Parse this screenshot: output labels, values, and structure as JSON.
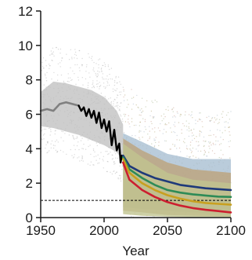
{
  "chart_data": {
    "type": "line",
    "title": "",
    "xlabel": "Year",
    "ylabel": "",
    "xlim": [
      1950,
      2100
    ],
    "ylim": [
      0,
      12
    ],
    "x_ticks": [
      1950,
      2000,
      2050,
      2100
    ],
    "y_ticks": [
      0,
      2,
      4,
      6,
      8,
      10,
      12
    ],
    "grid": false,
    "legend": "none",
    "reference_line": {
      "y": 1,
      "style": "dashed",
      "color": "#000000"
    },
    "historical_band": {
      "color": "#bdbdbd",
      "x": [
        1950,
        1960,
        1970,
        1980,
        1990,
        2000,
        2010,
        2015
      ],
      "lower": [
        5.3,
        5.2,
        5.0,
        4.8,
        4.5,
        4.2,
        3.8,
        3.3
      ],
      "upper": [
        7.3,
        7.9,
        7.8,
        7.6,
        7.4,
        7.0,
        6.2,
        5.4
      ]
    },
    "series": [
      {
        "color": "#808080",
        "x": [
          1950,
          1955,
          1960,
          1965,
          1970,
          1975,
          1980
        ],
        "values": [
          6.2,
          6.3,
          6.2,
          6.6,
          6.7,
          6.6,
          6.5
        ]
      },
      {
        "color": "#000000",
        "x": [
          1980,
          1982,
          1984,
          1986,
          1988,
          1990,
          1992,
          1994,
          1996,
          1998,
          2000,
          2002,
          2004,
          2006,
          2008,
          2010,
          2012,
          2013,
          2014
        ],
        "values": [
          6.5,
          6.2,
          6.4,
          5.9,
          6.3,
          5.8,
          6.2,
          5.5,
          6.1,
          5.2,
          5.7,
          5.0,
          5.6,
          4.2,
          5.1,
          3.9,
          4.3,
          3.2,
          3.6
        ]
      },
      {
        "color": "#1f3a7a",
        "x": [
          2015,
          2020,
          2030,
          2040,
          2050,
          2060,
          2070,
          2080,
          2090,
          2100
        ],
        "values": [
          3.6,
          3.0,
          2.6,
          2.3,
          2.1,
          1.9,
          1.8,
          1.7,
          1.65,
          1.6
        ]
      },
      {
        "color": "#2e8b57",
        "x": [
          2015,
          2020,
          2030,
          2040,
          2050,
          2060,
          2070,
          2080,
          2090,
          2100
        ],
        "values": [
          3.5,
          2.8,
          2.3,
          1.9,
          1.6,
          1.45,
          1.35,
          1.28,
          1.22,
          1.2
        ]
      },
      {
        "color": "#c8a020",
        "x": [
          2015,
          2020,
          2030,
          2040,
          2050,
          2060,
          2070,
          2080,
          2090,
          2100
        ],
        "values": [
          3.4,
          2.6,
          2.0,
          1.6,
          1.3,
          1.1,
          0.95,
          0.85,
          0.8,
          0.75
        ]
      },
      {
        "color": "#cc1f2f",
        "x": [
          2015,
          2020,
          2030,
          2040,
          2050,
          2060,
          2070,
          2080,
          2090,
          2100
        ],
        "values": [
          3.2,
          2.2,
          1.6,
          1.2,
          0.9,
          0.7,
          0.55,
          0.45,
          0.38,
          0.3
        ]
      }
    ],
    "projection_bands": [
      {
        "color": "#a9bfd2",
        "x": [
          2015,
          2030,
          2050,
          2070,
          2100
        ],
        "lower": [
          0.6,
          0.5,
          0.4,
          0.3,
          0.2
        ],
        "upper": [
          4.9,
          4.4,
          3.7,
          3.4,
          3.4
        ]
      },
      {
        "color": "#bda27a",
        "x": [
          2015,
          2030,
          2050,
          2070,
          2100
        ],
        "lower": [
          0.4,
          0.3,
          0.15,
          0.1,
          0.05
        ],
        "upper": [
          4.6,
          3.9,
          3.2,
          2.8,
          2.6
        ]
      },
      {
        "color": "#c0c490",
        "x": [
          2015,
          2030,
          2050,
          2070,
          2100
        ],
        "lower": [
          0.2,
          0.1,
          0.05,
          0.02,
          0.0
        ],
        "upper": [
          4.3,
          3.5,
          2.6,
          2.2,
          2.0
        ]
      }
    ]
  }
}
